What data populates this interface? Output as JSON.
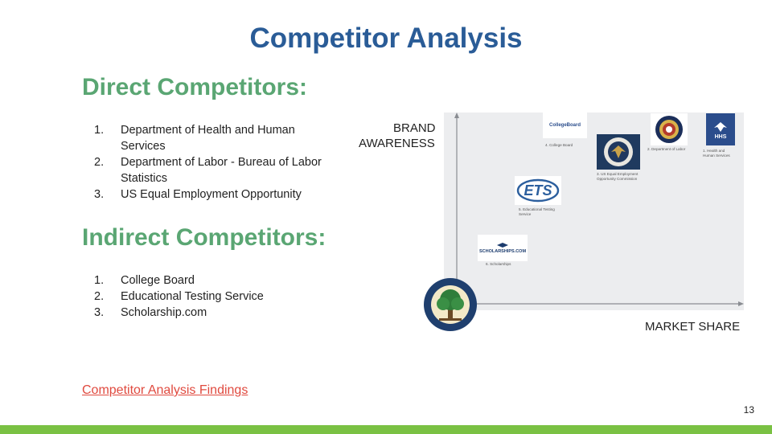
{
  "title": "Competitor Analysis",
  "direct": {
    "heading": "Direct Competitors:",
    "items": [
      {
        "num": "1.",
        "text": "Department of Health and Human Services"
      },
      {
        "num": "2.",
        "text": "Department of Labor - Bureau of Labor Statistics"
      },
      {
        "num": "3.",
        "text": "US Equal Employment Opportunity"
      }
    ]
  },
  "indirect": {
    "heading": "Indirect Competitors:",
    "items": [
      {
        "num": "1.",
        "text": "College Board"
      },
      {
        "num": "2.",
        "text": "Educational Testing Service"
      },
      {
        "num": "3.",
        "text": "Scholarship.com"
      }
    ]
  },
  "link": "Competitor Analysis Findings",
  "page_number": "13",
  "chart": {
    "y_label_line1": "BRAND",
    "y_label_line2": "AWARENESS",
    "x_label": "MARKET SHARE",
    "logos": {
      "collegeboard": "CollegeBoard",
      "ets": "ETS",
      "scholarships": "SCHOLARSHIPS.COM",
      "hhs": "HHS"
    },
    "captions": {
      "collegeboard": "4. College Board",
      "labor": "2. Department of Labor",
      "hhs": "1. Health and Human Services",
      "eeoc": "3. US Equal Employment Opportunity Commission",
      "ets": "5. Educational Testing Service",
      "scholarships": "6. Scholarships"
    }
  },
  "colors": {
    "title": "#2a5c97",
    "heading": "#5aa673",
    "link": "#e04a3f",
    "bottom_bar": "#7ac143"
  }
}
